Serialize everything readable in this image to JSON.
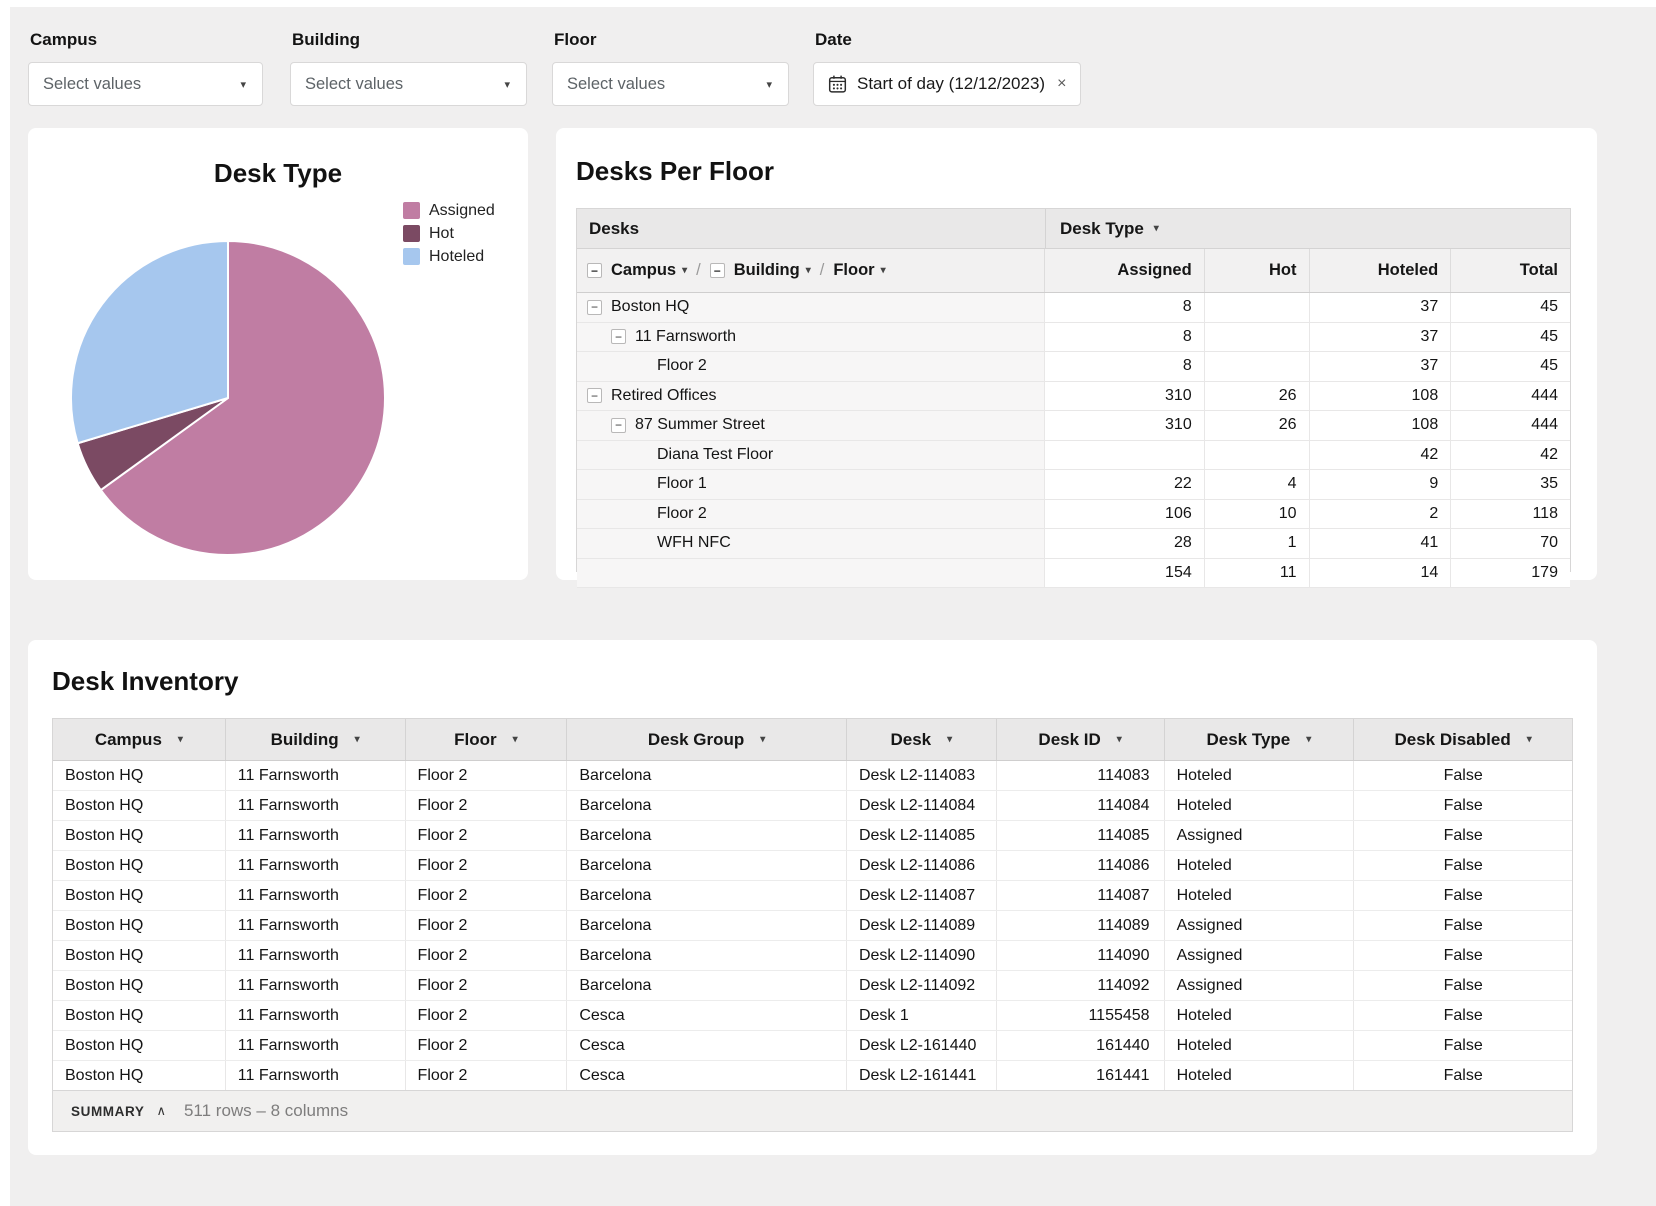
{
  "glyphs": {
    "caret_down": "▾",
    "minus": "−",
    "close": "×",
    "chevron_up": "∧",
    "slash": "/"
  },
  "filters": {
    "campus": {
      "label": "Campus",
      "placeholder": "Select values"
    },
    "building": {
      "label": "Building",
      "placeholder": "Select values"
    },
    "floor": {
      "label": "Floor",
      "placeholder": "Select values"
    },
    "date": {
      "label": "Date",
      "value": "Start of day (12/12/2023)"
    }
  },
  "desk_type_panel": {
    "title": "Desk Type",
    "legend": [
      {
        "label": "Assigned",
        "color": "#c07da3"
      },
      {
        "label": "Hot",
        "color": "#7b4a63"
      },
      {
        "label": "Hoteled",
        "color": "#a6c7ee"
      }
    ]
  },
  "chart_data": {
    "type": "pie",
    "title": "Desk Type",
    "labels": [
      "Assigned",
      "Hot",
      "Hoteled"
    ],
    "values": [
      318,
      26,
      145
    ],
    "percents": [
      65.0,
      5.3,
      29.7
    ],
    "colors": [
      "#c07da3",
      "#7b4a63",
      "#a6c7ee"
    ],
    "legend_position": "top-right",
    "start_angle_deg": 0,
    "direction": "clockwise"
  },
  "desks_per_floor": {
    "title": "Desks Per Floor",
    "header_group": {
      "desks": "Desks",
      "desk_type": "Desk Type"
    },
    "hierarchy": {
      "campus": "Campus",
      "building": "Building",
      "floor": "Floor"
    },
    "columns": [
      "Assigned",
      "Hot",
      "Hoteled",
      "Total"
    ],
    "rows": [
      {
        "label": "Boston HQ",
        "level": 0,
        "collapsible": true,
        "values": [
          "8",
          "",
          "37",
          "45"
        ]
      },
      {
        "label": "11 Farnsworth",
        "level": 1,
        "collapsible": true,
        "values": [
          "8",
          "",
          "37",
          "45"
        ]
      },
      {
        "label": "Floor 2",
        "level": 2,
        "collapsible": false,
        "values": [
          "8",
          "",
          "37",
          "45"
        ]
      },
      {
        "label": "Retired Offices",
        "level": 0,
        "collapsible": true,
        "values": [
          "310",
          "26",
          "108",
          "444"
        ]
      },
      {
        "label": "87 Summer Street",
        "level": 1,
        "collapsible": true,
        "values": [
          "310",
          "26",
          "108",
          "444"
        ]
      },
      {
        "label": "Diana Test Floor",
        "level": 2,
        "collapsible": false,
        "values": [
          "",
          "",
          "42",
          "42"
        ]
      },
      {
        "label": "Floor 1",
        "level": 2,
        "collapsible": false,
        "values": [
          "22",
          "4",
          "9",
          "35"
        ]
      },
      {
        "label": "Floor 2",
        "level": 2,
        "collapsible": false,
        "values": [
          "106",
          "10",
          "2",
          "118"
        ]
      },
      {
        "label": "WFH NFC",
        "level": 2,
        "collapsible": false,
        "values": [
          "28",
          "1",
          "41",
          "70"
        ]
      },
      {
        "label": "",
        "level": 2,
        "collapsible": false,
        "values": [
          "154",
          "11",
          "14",
          "179"
        ]
      }
    ]
  },
  "desk_inventory": {
    "title": "Desk Inventory",
    "columns": [
      "Campus",
      "Building",
      "Floor",
      "Desk Group",
      "Desk",
      "Desk ID",
      "Desk Type",
      "Desk Disabled"
    ],
    "rows": [
      [
        "Boston HQ",
        "11 Farnsworth",
        "Floor 2",
        "Barcelona",
        "Desk L2-114083",
        "114083",
        "Hoteled",
        "False"
      ],
      [
        "Boston HQ",
        "11 Farnsworth",
        "Floor 2",
        "Barcelona",
        "Desk L2-114084",
        "114084",
        "Hoteled",
        "False"
      ],
      [
        "Boston HQ",
        "11 Farnsworth",
        "Floor 2",
        "Barcelona",
        "Desk L2-114085",
        "114085",
        "Assigned",
        "False"
      ],
      [
        "Boston HQ",
        "11 Farnsworth",
        "Floor 2",
        "Barcelona",
        "Desk L2-114086",
        "114086",
        "Hoteled",
        "False"
      ],
      [
        "Boston HQ",
        "11 Farnsworth",
        "Floor 2",
        "Barcelona",
        "Desk L2-114087",
        "114087",
        "Hoteled",
        "False"
      ],
      [
        "Boston HQ",
        "11 Farnsworth",
        "Floor 2",
        "Barcelona",
        "Desk L2-114089",
        "114089",
        "Assigned",
        "False"
      ],
      [
        "Boston HQ",
        "11 Farnsworth",
        "Floor 2",
        "Barcelona",
        "Desk L2-114090",
        "114090",
        "Assigned",
        "False"
      ],
      [
        "Boston HQ",
        "11 Farnsworth",
        "Floor 2",
        "Barcelona",
        "Desk L2-114092",
        "114092",
        "Assigned",
        "False"
      ],
      [
        "Boston HQ",
        "11 Farnsworth",
        "Floor 2",
        "Cesca",
        "Desk 1",
        "1155458",
        "Hoteled",
        "False"
      ],
      [
        "Boston HQ",
        "11 Farnsworth",
        "Floor 2",
        "Cesca",
        "Desk L2-161440",
        "161440",
        "Hoteled",
        "False"
      ],
      [
        "Boston HQ",
        "11 Farnsworth",
        "Floor 2",
        "Cesca",
        "Desk L2-161441",
        "161441",
        "Hoteled",
        "False"
      ]
    ],
    "summary": {
      "label": "SUMMARY",
      "text": "511 rows – 8 columns"
    }
  }
}
